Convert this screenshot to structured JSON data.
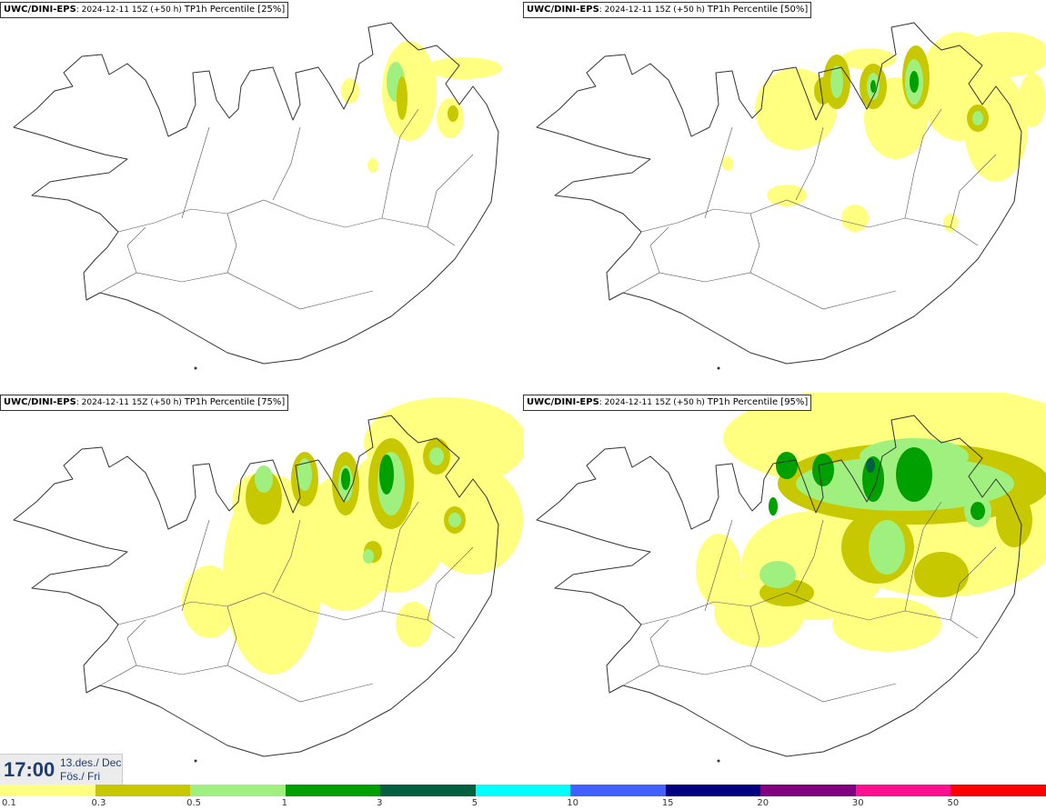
{
  "panels": [
    {
      "model": "UWC/DINI-EPS",
      "run_info": ": 2024-12-11 15Z (+50 h)",
      "product": "TP1h Percentile [25%]",
      "level": 1
    },
    {
      "model": "UWC/DINI-EPS",
      "run_info": ": 2024-12-11 15Z (+50 h)",
      "product": "TP1h Percentile [50%]",
      "level": 2
    },
    {
      "model": "UWC/DINI-EPS",
      "run_info": ": 2024-12-11 15Z (+50 h)",
      "product": "TP1h Percentile [75%]",
      "level": 3
    },
    {
      "model": "UWC/DINI-EPS",
      "run_info": ": 2024-12-11 15Z (+50 h)",
      "product": "TP1h Percentile [95%]",
      "level": 4
    }
  ],
  "valid_time": {
    "clock": "17:00",
    "date_line": "13.des./ Dec",
    "day_line": "Fös./ Fri"
  },
  "colorbar": {
    "colors": [
      "#ffff80",
      "#c8c800",
      "#a0f080",
      "#00a000",
      "#006040",
      "#00ffff",
      "#4060ff",
      "#000080",
      "#800080",
      "#ff1090",
      "#ff0000"
    ],
    "labels": [
      "0.1",
      "0.3",
      "0.5",
      "1",
      "3",
      "5",
      "10",
      "15",
      "20",
      "30",
      "50"
    ]
  }
}
